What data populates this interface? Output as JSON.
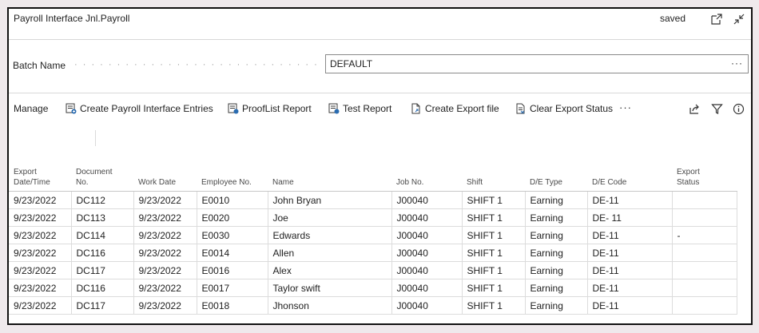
{
  "window": {
    "title": "Payroll Interface Jnl.Payroll",
    "status": "saved"
  },
  "icons": {
    "open_new": "open-in-new-window-icon",
    "collapse": "collapse-icon"
  },
  "batch": {
    "label": "Batch Name",
    "value": "DEFAULT",
    "more": "···"
  },
  "actions": {
    "manage": "Manage",
    "create_entries": "Create Payroll Interface Entries",
    "prooflist": "ProofList Report",
    "test_report": "Test Report",
    "create_export": "Create Export file",
    "clear_export": "Clear Export Status",
    "more": "···"
  },
  "columns": {
    "export_date": [
      "Export",
      "Date/Time"
    ],
    "document_no": [
      "Document",
      "No."
    ],
    "work_date": "Work Date",
    "employee_no": "Employee No.",
    "name": "Name",
    "job_no": "Job No.",
    "shift": "Shift",
    "de_type": "D/E Type",
    "de_code": "D/E Code",
    "export_status": [
      "Export",
      "Status"
    ]
  },
  "rows": [
    [
      "9/23/2022",
      "DC112",
      "9/23/2022",
      "E0010",
      "John Bryan",
      "J00040",
      "SHIFT 1",
      "Earning",
      "DE-11",
      ""
    ],
    [
      "9/23/2022",
      "DC113",
      "9/23/2022",
      "E0020",
      "Joe",
      "J00040",
      "SHIFT 1",
      "Earning",
      "DE- 11",
      ""
    ],
    [
      "9/23/2022",
      "DC114",
      "9/23/2022",
      "E0030",
      "Edwards",
      "J00040",
      "SHIFT 1",
      " Earning",
      "DE-11",
      "-"
    ],
    [
      "9/23/2022",
      "DC116",
      "9/23/2022",
      "E0014",
      "Allen",
      "J00040",
      "SHIFT 1",
      "Earning",
      "DE-11",
      ""
    ],
    [
      "9/23/2022",
      "DC117",
      "9/23/2022",
      "E0016",
      "Alex",
      "J00040",
      "SHIFT 1",
      "Earning",
      "DE-11",
      ""
    ],
    [
      "9/23/2022",
      "DC116",
      "9/23/2022",
      "E0017",
      "Taylor swift",
      "J00040",
      "SHIFT 1",
      "Earning",
      "DE-11",
      ""
    ],
    [
      "9/23/2022",
      "DC117",
      "9/23/2022",
      "E0018",
      "Jhonson",
      "J00040",
      "SHIFT 1",
      "Earning",
      "DE-11",
      ""
    ]
  ]
}
